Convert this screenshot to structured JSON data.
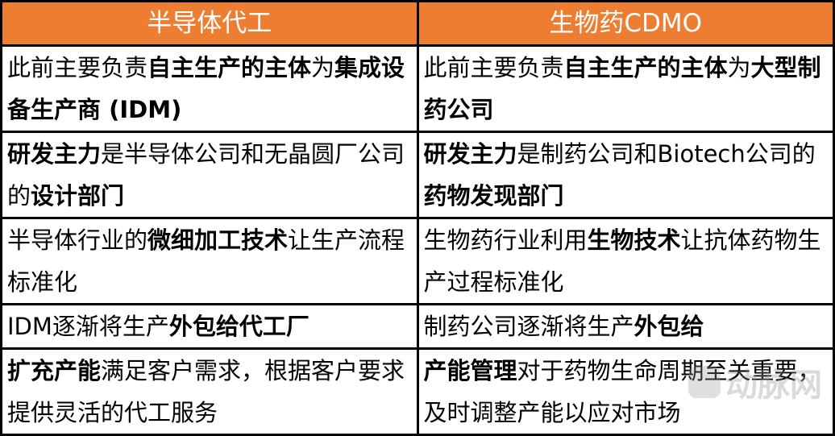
{
  "header": {
    "left": "半导体代工",
    "right": "生物药CDMO",
    "color": "#ED7D31"
  },
  "rows": [
    {
      "left": [
        {
          "t": "此前主要负责",
          "b": false
        },
        {
          "t": "自主生产的主体",
          "b": true
        },
        {
          "t": "为",
          "b": false
        },
        {
          "t": "集成设备生产商 (IDM)",
          "b": true
        }
      ],
      "right": [
        {
          "t": "此前主要负责",
          "b": false
        },
        {
          "t": "自主生产的主体",
          "b": true
        },
        {
          "t": "为",
          "b": false
        },
        {
          "t": "大型制药公司",
          "b": true
        }
      ]
    },
    {
      "left": [
        {
          "t": "研发主力",
          "b": true
        },
        {
          "t": "是半导体公司和无晶圆厂公司的",
          "b": false
        },
        {
          "t": "设计部门",
          "b": true
        }
      ],
      "right": [
        {
          "t": "研发主力",
          "b": true
        },
        {
          "t": "是制药公司和Biotech公司的",
          "b": false
        },
        {
          "t": "药物发现部门",
          "b": true
        }
      ]
    },
    {
      "left": [
        {
          "t": "半导体行业的",
          "b": false
        },
        {
          "t": "微细加工技术",
          "b": true
        },
        {
          "t": "让生产流程标准化",
          "b": false
        }
      ],
      "right": [
        {
          "t": "生物药行业利用",
          "b": false
        },
        {
          "t": "生物技术",
          "b": true
        },
        {
          "t": "让抗体药物生产过程标准化",
          "b": false
        }
      ]
    },
    {
      "left": [
        {
          "t": "IDM逐渐将生产",
          "b": false
        },
        {
          "t": "外包给代工厂",
          "b": true
        }
      ],
      "right": [
        {
          "t": "制药公司逐渐将生产",
          "b": false
        },
        {
          "t": "外包给",
          "b": true
        }
      ]
    },
    {
      "left": [
        {
          "t": "扩充产能",
          "b": true
        },
        {
          "t": "满足客户需求，根据客户要求提供灵活的代工服务",
          "b": false
        }
      ],
      "right": [
        {
          "t": "产能管理",
          "b": true
        },
        {
          "t": "对于药物生命周期至关重要，及时调整产能以应对市场",
          "b": false
        }
      ]
    }
  ],
  "watermark": {
    "logo": "VB",
    "text": "动脉网"
  }
}
